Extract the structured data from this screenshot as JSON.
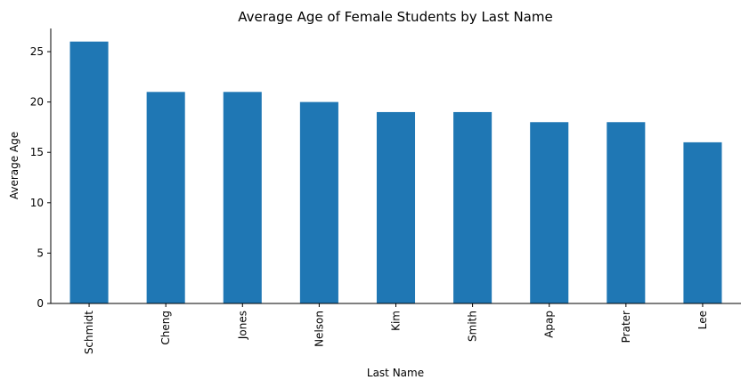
{
  "chart_data": {
    "type": "bar",
    "title": "Average Age of Female Students by Last Name",
    "xlabel": "Last Name",
    "ylabel": "Average Age",
    "categories": [
      "Schmidt",
      "Cheng",
      "Jones",
      "Nelson",
      "Kim",
      "Smith",
      "Apap",
      "Prater",
      "Lee"
    ],
    "values": [
      26,
      21,
      21,
      20,
      19,
      19,
      18,
      18,
      16
    ],
    "ylim": [
      0,
      27.3
    ],
    "yticks": [
      0,
      5,
      10,
      15,
      20,
      25
    ],
    "bar_color": "#1f77b4",
    "grid": false,
    "legend": "none"
  }
}
